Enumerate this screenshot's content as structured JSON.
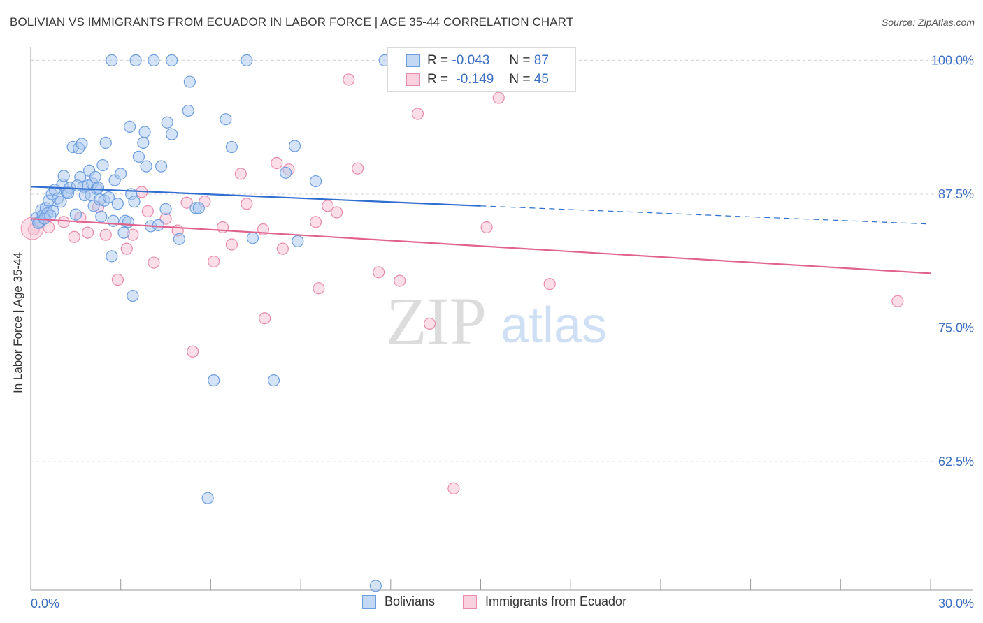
{
  "header": {
    "title": "BOLIVIAN VS IMMIGRANTS FROM ECUADOR IN LABOR FORCE | AGE 35-44 CORRELATION CHART",
    "source": "Source: ZipAtlas.com"
  },
  "legend": {
    "rows": [
      {
        "r_label": "R =",
        "r_value": "-0.043",
        "n_label": "N =",
        "n_value": "87"
      },
      {
        "r_label": "R =",
        "r_value": "-0.149",
        "n_label": "N =",
        "n_value": "45"
      }
    ]
  },
  "watermark": {
    "zip": "ZIP",
    "atlas": "atlas"
  },
  "colors": {
    "blue_fill": "#a9c8f0",
    "blue_stroke": "#6d9ee0",
    "blue_line": "#2f6ecf",
    "pink_fill": "#f7bdd0",
    "pink_stroke": "#e98bab",
    "pink_line": "#e0638f",
    "axis_label": "#3b6fc4",
    "grid": "#d6d6d6"
  },
  "chart_data": {
    "type": "scatter",
    "title": "BOLIVIAN VS IMMIGRANTS FROM ECUADOR IN LABOR FORCE | AGE 35-44 CORRELATION CHART",
    "xlabel": "",
    "ylabel": "In Labor Force | Age 35-44",
    "xlim": [
      0,
      30
    ],
    "ylim": [
      50.5,
      101.2
    ],
    "x_tick_labels": [
      "0.0%",
      "30.0%"
    ],
    "y_ticks": [
      100,
      87.5,
      75,
      62.5
    ],
    "y_tick_labels": [
      "100.0%",
      "87.5%",
      "75.0%",
      "62.5%"
    ],
    "grid": true,
    "legend_position": "top-center",
    "series": [
      {
        "name": "Bolivians",
        "r": -0.043,
        "n": 87,
        "trend": {
          "x": [
            0,
            15
          ],
          "y": [
            88.2,
            86.4
          ]
        },
        "trend_dashed": {
          "x": [
            15,
            30
          ],
          "y": [
            86.4,
            84.7
          ]
        },
        "points": [
          [
            0.2,
            85.3
          ],
          [
            0.3,
            84.9
          ],
          [
            0.35,
            86.0
          ],
          [
            0.4,
            85.5
          ],
          [
            0.5,
            86.2
          ],
          [
            0.55,
            85.7
          ],
          [
            0.6,
            86.9
          ],
          [
            0.7,
            87.5
          ],
          [
            0.75,
            85.9
          ],
          [
            0.8,
            87.9
          ],
          [
            0.9,
            87.1
          ],
          [
            1.0,
            86.8
          ],
          [
            1.05,
            88.4
          ],
          [
            1.1,
            89.2
          ],
          [
            1.2,
            87.7
          ],
          [
            1.3,
            88.1
          ],
          [
            1.4,
            91.9
          ],
          [
            1.5,
            85.6
          ],
          [
            1.6,
            91.8
          ],
          [
            1.65,
            89.1
          ],
          [
            1.7,
            92.2
          ],
          [
            1.75,
            88.2
          ],
          [
            1.8,
            87.4
          ],
          [
            1.9,
            88.3
          ],
          [
            1.95,
            89.7
          ],
          [
            2.0,
            87.4
          ],
          [
            2.05,
            88.5
          ],
          [
            2.1,
            86.4
          ],
          [
            2.15,
            89.1
          ],
          [
            2.2,
            88.0
          ],
          [
            2.3,
            87.0
          ],
          [
            2.35,
            85.4
          ],
          [
            2.4,
            90.2
          ],
          [
            2.45,
            86.9
          ],
          [
            2.5,
            92.3
          ],
          [
            2.6,
            87.2
          ],
          [
            2.7,
            81.7
          ],
          [
            2.75,
            85.0
          ],
          [
            2.8,
            88.8
          ],
          [
            2.9,
            86.6
          ],
          [
            3.0,
            89.4
          ],
          [
            3.1,
            83.9
          ],
          [
            3.15,
            85.0
          ],
          [
            3.3,
            93.8
          ],
          [
            3.35,
            87.5
          ],
          [
            3.4,
            78.0
          ],
          [
            3.45,
            86.8
          ],
          [
            3.6,
            91.0
          ],
          [
            3.75,
            92.3
          ],
          [
            3.8,
            93.3
          ],
          [
            3.85,
            90.1
          ],
          [
            4.0,
            84.5
          ],
          [
            4.25,
            84.6
          ],
          [
            4.35,
            90.1
          ],
          [
            4.5,
            86.1
          ],
          [
            4.55,
            94.2
          ],
          [
            4.7,
            93.1
          ],
          [
            4.95,
            83.3
          ],
          [
            5.25,
            95.3
          ],
          [
            5.3,
            98.0
          ],
          [
            5.5,
            86.2
          ],
          [
            5.6,
            86.2
          ],
          [
            5.9,
            59.1
          ],
          [
            6.1,
            70.1
          ],
          [
            6.5,
            94.5
          ],
          [
            6.7,
            91.9
          ],
          [
            7.2,
            100.0
          ],
          [
            7.4,
            83.4
          ],
          [
            8.1,
            70.1
          ],
          [
            8.5,
            89.5
          ],
          [
            8.8,
            92.0
          ],
          [
            8.9,
            83.1
          ],
          [
            9.5,
            88.7
          ],
          [
            11.5,
            50.9
          ],
          [
            11.8,
            100.0
          ],
          [
            12.2,
            100.0
          ],
          [
            2.7,
            100.0
          ],
          [
            3.5,
            100.0
          ],
          [
            4.1,
            100.0
          ],
          [
            4.7,
            100.0
          ],
          [
            0.25,
            84.8
          ],
          [
            0.45,
            85.2
          ],
          [
            0.65,
            85.5
          ],
          [
            1.25,
            87.6
          ],
          [
            1.55,
            88.3
          ],
          [
            2.25,
            88.1
          ],
          [
            3.25,
            84.9
          ]
        ]
      },
      {
        "name": "Immigrants from Ecuador",
        "r": -0.149,
        "n": 45,
        "trend": {
          "x": [
            0,
            30
          ],
          "y": [
            85.2,
            80.1
          ]
        },
        "points": [
          [
            0.1,
            84.2
          ],
          [
            0.3,
            84.8
          ],
          [
            0.6,
            84.4
          ],
          [
            1.1,
            84.9
          ],
          [
            1.45,
            83.5
          ],
          [
            1.65,
            85.3
          ],
          [
            1.9,
            83.9
          ],
          [
            2.25,
            86.3
          ],
          [
            2.5,
            83.7
          ],
          [
            2.9,
            79.5
          ],
          [
            3.2,
            82.4
          ],
          [
            3.4,
            83.7
          ],
          [
            3.7,
            87.7
          ],
          [
            3.9,
            85.9
          ],
          [
            4.1,
            81.1
          ],
          [
            4.5,
            85.2
          ],
          [
            4.9,
            84.1
          ],
          [
            5.2,
            86.7
          ],
          [
            5.4,
            72.8
          ],
          [
            5.8,
            86.8
          ],
          [
            6.1,
            81.2
          ],
          [
            6.4,
            84.4
          ],
          [
            6.7,
            82.8
          ],
          [
            7.0,
            89.4
          ],
          [
            7.2,
            86.6
          ],
          [
            7.75,
            84.2
          ],
          [
            7.8,
            75.9
          ],
          [
            8.2,
            90.4
          ],
          [
            8.4,
            82.4
          ],
          [
            8.6,
            89.8
          ],
          [
            9.5,
            84.9
          ],
          [
            9.6,
            78.7
          ],
          [
            9.9,
            86.4
          ],
          [
            10.2,
            85.8
          ],
          [
            10.6,
            98.2
          ],
          [
            10.9,
            89.9
          ],
          [
            11.6,
            80.2
          ],
          [
            12.3,
            79.4
          ],
          [
            12.9,
            95.0
          ],
          [
            13.3,
            75.4
          ],
          [
            14.1,
            60.0
          ],
          [
            15.2,
            84.4
          ],
          [
            15.6,
            96.5
          ],
          [
            17.3,
            79.1
          ],
          [
            28.9,
            77.5
          ]
        ]
      }
    ]
  },
  "bottom_legend": {
    "items": [
      {
        "label": "Bolivians"
      },
      {
        "label": "Immigrants from Ecuador"
      }
    ]
  }
}
